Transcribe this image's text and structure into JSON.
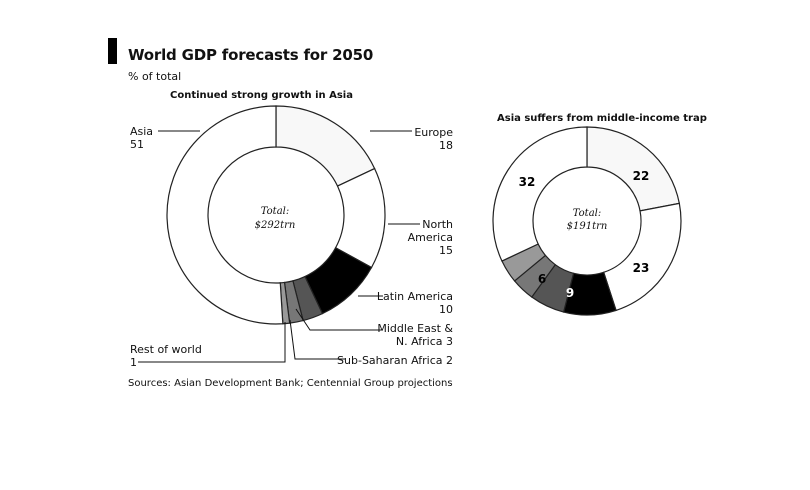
{
  "title": "World GDP forecasts for 2050",
  "subtitle": "% of total",
  "source": "Sources: Asian Development Bank; Centennial Group projections",
  "colors": {
    "asia": "#ffffff",
    "europe": "#f8f8f8",
    "north_america": "#ffffff",
    "latin_america": "#000000",
    "middle_east": "#555555",
    "ssa": "#777777",
    "rest": "#999999",
    "stroke": "#222222"
  },
  "chart_data": [
    {
      "type": "pie",
      "title": "Continued strong growth in Asia",
      "total_label": "Total:",
      "total_value": "$292trn",
      "slices": [
        {
          "key": "europe",
          "label": "Europe",
          "value": 18,
          "value_text": "18"
        },
        {
          "key": "north_america",
          "label": "North America",
          "label_lines": [
            "North",
            "America"
          ],
          "value": 15,
          "value_text": "15"
        },
        {
          "key": "latin_america",
          "label": "Latin America",
          "value": 10,
          "value_text": "10"
        },
        {
          "key": "middle_east",
          "label": "Middle East & N. Africa",
          "label_lines": [
            "Middle East &",
            "N. Africa 3"
          ],
          "value": 3,
          "value_text": "3"
        },
        {
          "key": "ssa",
          "label": "Sub-Saharan Africa",
          "label_lines": [
            "Sub-Saharan Africa 2"
          ],
          "value": 2,
          "value_text": "2"
        },
        {
          "key": "rest",
          "label": "Rest of world",
          "value": 1,
          "value_text": "1"
        },
        {
          "key": "asia",
          "label": "Asia",
          "value": 51,
          "value_text": "51"
        }
      ]
    },
    {
      "type": "pie",
      "title": "Asia suffers from middle-income trap",
      "total_label": "Total:",
      "total_value": "$191trn",
      "slices": [
        {
          "key": "europe",
          "value": 22,
          "value_text": "22"
        },
        {
          "key": "north_america",
          "value": 23,
          "value_text": "23"
        },
        {
          "key": "latin_america",
          "value": 9,
          "value_text": "9"
        },
        {
          "key": "middle_east",
          "value": 6,
          "value_text": "6"
        },
        {
          "key": "ssa",
          "value": 4,
          "value_text": "4"
        },
        {
          "key": "rest",
          "value": 4,
          "value_text": "4"
        },
        {
          "key": "asia",
          "value": 32,
          "value_text": "32"
        }
      ]
    }
  ]
}
